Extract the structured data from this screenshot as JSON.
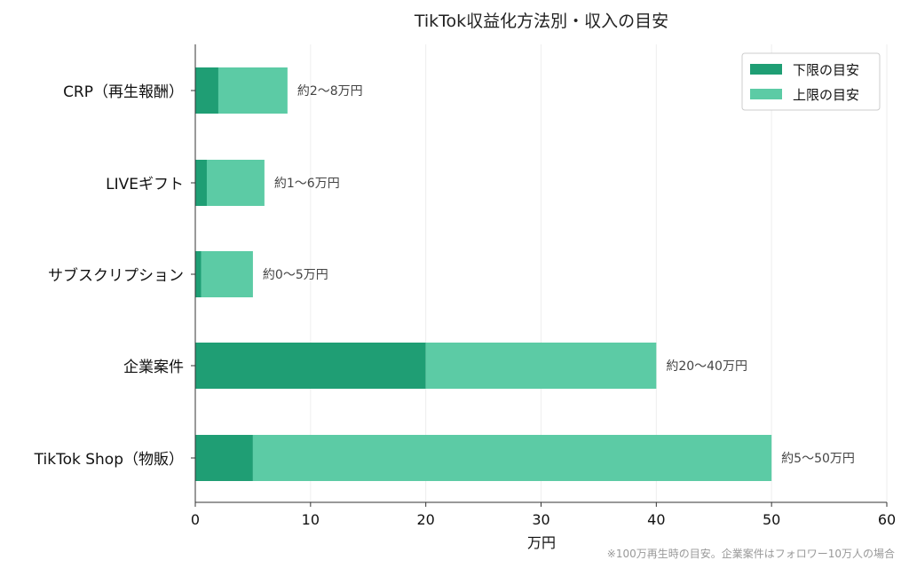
{
  "chart_data": {
    "type": "bar",
    "orientation": "horizontal",
    "stacked": true,
    "title": "TikTok収益化方法別・収入の目安",
    "xlabel": "万円",
    "ylabel": "",
    "xlim": [
      0,
      60
    ],
    "xticks": [
      0,
      10,
      20,
      30,
      40,
      50,
      60
    ],
    "grid": "vertical",
    "legend_position": "top-right",
    "categories": [
      "CRP（再生報酬）",
      "LIVEギフト",
      "サブスクリプション",
      "企業案件",
      "TikTok Shop（物販）"
    ],
    "series": [
      {
        "name": "下限の目安",
        "color": "#1f9e74",
        "values": [
          2,
          1,
          0.5,
          20,
          5
        ]
      },
      {
        "name": "上限の目安",
        "color": "#5ccba5",
        "values": [
          8,
          6,
          5,
          40,
          50
        ]
      }
    ],
    "data_labels": [
      "約2〜8万円",
      "約1〜6万円",
      "約0〜5万円",
      "約20〜40万円",
      "約5〜50万円"
    ],
    "footnote": "※100万再生時の目安。企業案件はフォロワー10万人の場合"
  }
}
